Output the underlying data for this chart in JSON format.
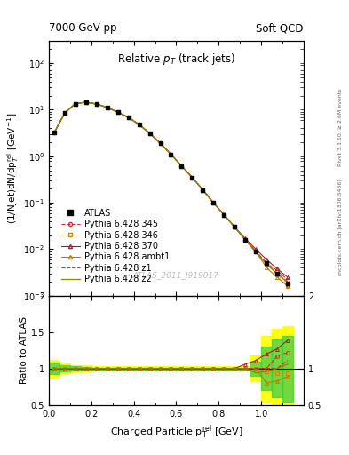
{
  "title_main": "Relative p_{T} (track jets)",
  "header_left": "7000 GeV pp",
  "header_right": "Soft QCD",
  "xlabel": "Charged Particle p_{T}^{rel} [GeV]",
  "right_text1": "Rivet 3.1.10, ≥ 2.6M events",
  "right_text2": "mcplots.cern.ch [arXiv:1306.3436]",
  "watermark": "ATLAS_2011_I919017",
  "x_data": [
    0.025,
    0.075,
    0.125,
    0.175,
    0.225,
    0.275,
    0.325,
    0.375,
    0.425,
    0.475,
    0.525,
    0.575,
    0.625,
    0.675,
    0.725,
    0.775,
    0.825,
    0.875,
    0.925,
    0.975,
    1.025,
    1.075,
    1.125
  ],
  "atlas_y": [
    3.2,
    8.5,
    13.5,
    14.5,
    13.2,
    11.2,
    8.8,
    6.8,
    4.8,
    3.1,
    1.9,
    1.1,
    0.62,
    0.35,
    0.19,
    0.1,
    0.055,
    0.03,
    0.016,
    0.009,
    0.005,
    0.003,
    0.0018
  ],
  "atlas_err": [
    0.15,
    0.3,
    0.4,
    0.4,
    0.35,
    0.3,
    0.25,
    0.2,
    0.15,
    0.1,
    0.07,
    0.04,
    0.025,
    0.015,
    0.008,
    0.005,
    0.003,
    0.0015,
    0.001,
    0.0005,
    0.0003,
    0.00015,
    0.0001
  ],
  "py345_y": [
    3.2,
    8.5,
    13.5,
    14.5,
    13.2,
    11.2,
    8.8,
    6.8,
    4.8,
    3.1,
    1.9,
    1.1,
    0.62,
    0.35,
    0.19,
    0.1,
    0.055,
    0.03,
    0.016,
    0.009,
    0.005,
    0.0035,
    0.0022
  ],
  "py346_y": [
    3.2,
    8.5,
    13.5,
    14.5,
    13.2,
    11.2,
    8.8,
    6.8,
    4.8,
    3.1,
    1.9,
    1.1,
    0.62,
    0.35,
    0.19,
    0.1,
    0.055,
    0.03,
    0.016,
    0.009,
    0.0048,
    0.0028,
    0.0017
  ],
  "py370_y": [
    3.2,
    8.5,
    13.5,
    14.5,
    13.2,
    11.2,
    8.8,
    6.8,
    4.8,
    3.1,
    1.9,
    1.1,
    0.62,
    0.35,
    0.19,
    0.1,
    0.055,
    0.03,
    0.017,
    0.01,
    0.006,
    0.0038,
    0.0025
  ],
  "pyambt1_y": [
    3.2,
    8.5,
    13.5,
    14.5,
    13.2,
    11.2,
    8.8,
    6.8,
    4.8,
    3.1,
    1.9,
    1.1,
    0.62,
    0.35,
    0.19,
    0.1,
    0.055,
    0.03,
    0.016,
    0.009,
    0.004,
    0.0025,
    0.0016
  ],
  "pyz1_y": [
    3.2,
    8.5,
    13.5,
    14.5,
    13.2,
    11.2,
    8.8,
    6.8,
    4.8,
    3.1,
    1.9,
    1.1,
    0.62,
    0.35,
    0.19,
    0.1,
    0.055,
    0.03,
    0.016,
    0.009,
    0.005,
    0.003,
    0.002
  ],
  "pyz2_y": [
    3.2,
    8.5,
    13.5,
    14.5,
    13.2,
    11.2,
    8.8,
    6.8,
    4.8,
    3.1,
    1.9,
    1.1,
    0.62,
    0.35,
    0.19,
    0.1,
    0.055,
    0.03,
    0.016,
    0.0085,
    0.0048,
    0.003,
    0.0019
  ],
  "ratio_py345": [
    1.0,
    1.0,
    1.0,
    1.0,
    1.0,
    1.0,
    1.0,
    1.0,
    1.0,
    1.0,
    1.0,
    1.0,
    1.0,
    1.0,
    1.0,
    1.0,
    1.0,
    1.0,
    1.0,
    1.0,
    1.0,
    1.17,
    1.22
  ],
  "ratio_py346": [
    1.0,
    1.0,
    1.0,
    1.0,
    1.0,
    1.0,
    1.0,
    1.0,
    1.0,
    1.0,
    1.0,
    1.0,
    1.0,
    1.0,
    1.0,
    1.0,
    1.0,
    1.0,
    1.0,
    1.0,
    0.96,
    0.93,
    0.94
  ],
  "ratio_py370": [
    1.0,
    1.0,
    1.0,
    1.0,
    1.0,
    1.0,
    1.0,
    1.0,
    1.0,
    1.0,
    1.0,
    1.0,
    1.0,
    1.0,
    1.0,
    1.0,
    1.0,
    1.0,
    1.06,
    1.11,
    1.2,
    1.27,
    1.39
  ],
  "ratio_pyambt1": [
    1.0,
    1.0,
    1.0,
    1.0,
    1.0,
    1.0,
    1.0,
    1.0,
    1.0,
    1.0,
    1.0,
    1.0,
    1.0,
    1.0,
    1.0,
    1.0,
    1.0,
    1.0,
    1.0,
    1.0,
    0.8,
    0.83,
    0.89
  ],
  "ratio_pyz1": [
    1.0,
    1.0,
    1.0,
    1.0,
    1.0,
    1.0,
    1.0,
    1.0,
    1.0,
    1.0,
    1.0,
    1.0,
    1.0,
    1.0,
    1.0,
    1.0,
    1.0,
    1.0,
    1.0,
    1.0,
    1.0,
    1.0,
    1.11
  ],
  "ratio_pyz2": [
    1.0,
    1.0,
    1.0,
    1.0,
    1.0,
    1.0,
    1.0,
    1.0,
    1.0,
    1.0,
    1.0,
    1.0,
    1.0,
    1.0,
    1.0,
    1.0,
    1.0,
    1.0,
    1.0,
    0.94,
    0.96,
    1.0,
    1.06
  ],
  "ratio_band_green_lo": [
    0.92,
    0.96,
    0.97,
    0.98,
    0.99,
    0.99,
    0.99,
    0.99,
    0.99,
    0.99,
    0.99,
    0.99,
    0.99,
    0.99,
    0.99,
    0.99,
    0.99,
    0.99,
    0.99,
    0.9,
    0.7,
    0.6,
    0.55
  ],
  "ratio_band_green_hi": [
    1.08,
    1.04,
    1.03,
    1.02,
    1.01,
    1.01,
    1.01,
    1.01,
    1.01,
    1.01,
    1.01,
    1.01,
    1.01,
    1.01,
    1.01,
    1.01,
    1.01,
    1.01,
    1.01,
    1.1,
    1.3,
    1.4,
    1.45
  ],
  "ratio_band_yellow_lo": [
    0.88,
    0.93,
    0.95,
    0.96,
    0.97,
    0.97,
    0.97,
    0.97,
    0.97,
    0.97,
    0.97,
    0.97,
    0.97,
    0.97,
    0.97,
    0.97,
    0.97,
    0.97,
    0.97,
    0.82,
    0.55,
    0.45,
    0.42
  ],
  "ratio_band_yellow_hi": [
    1.12,
    1.07,
    1.05,
    1.04,
    1.03,
    1.03,
    1.03,
    1.03,
    1.03,
    1.03,
    1.03,
    1.03,
    1.03,
    1.03,
    1.03,
    1.03,
    1.03,
    1.03,
    1.03,
    1.18,
    1.45,
    1.55,
    1.58
  ],
  "color_py345": "#cc3333",
  "color_py346": "#cc8800",
  "color_py370": "#aa2222",
  "color_pyambt1": "#cc7700",
  "color_pyz1": "#bb3333",
  "color_pyz2": "#888800",
  "color_atlas": "#000000",
  "xlim": [
    0.0,
    1.2
  ],
  "ylim_main": [
    0.001,
    300.0
  ],
  "ylim_ratio": [
    0.5,
    2.0
  ],
  "legend_fontsize": 7,
  "tick_fontsize": 7,
  "label_fontsize": 8
}
